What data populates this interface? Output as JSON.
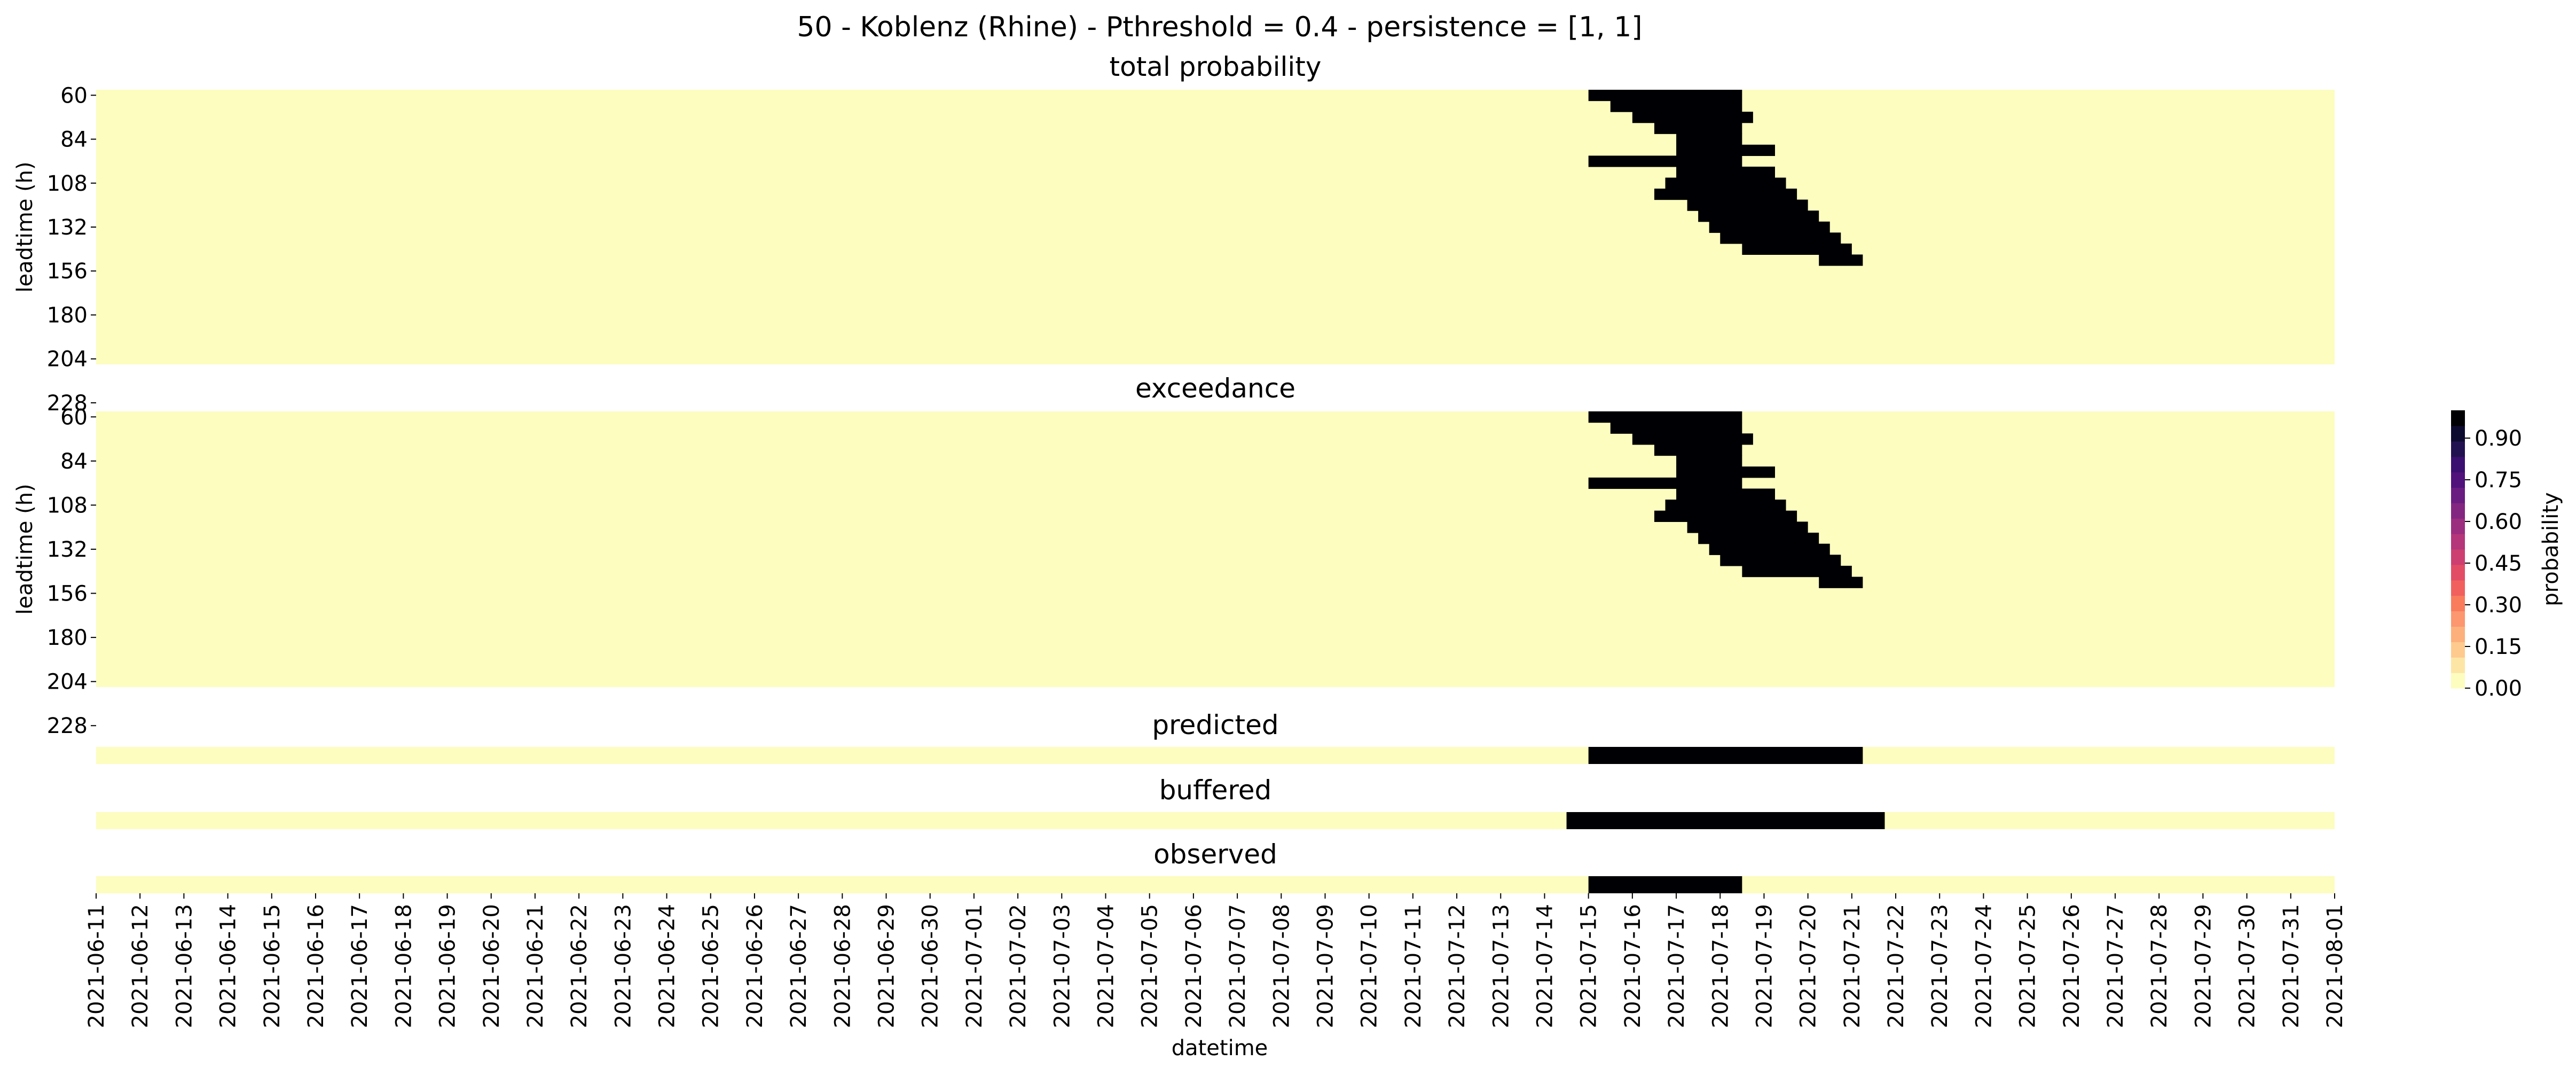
{
  "chart_data": {
    "type": "heatmap",
    "title": "50 - Koblenz (Rhine) - Pthreshold = 0.4 - persistence = [1, 1]",
    "xlabel": "datetime",
    "x_tick_labels": [
      "2021-06-11",
      "2021-06-12",
      "2021-06-13",
      "2021-06-14",
      "2021-06-15",
      "2021-06-16",
      "2021-06-17",
      "2021-06-18",
      "2021-06-19",
      "2021-06-20",
      "2021-06-21",
      "2021-06-22",
      "2021-06-23",
      "2021-06-24",
      "2021-06-25",
      "2021-06-26",
      "2021-06-27",
      "2021-06-28",
      "2021-06-29",
      "2021-06-30",
      "2021-07-01",
      "2021-07-02",
      "2021-07-03",
      "2021-07-04",
      "2021-07-05",
      "2021-07-06",
      "2021-07-07",
      "2021-07-08",
      "2021-07-09",
      "2021-07-10",
      "2021-07-11",
      "2021-07-12",
      "2021-07-13",
      "2021-07-14",
      "2021-07-15",
      "2021-07-16",
      "2021-07-17",
      "2021-07-18",
      "2021-07-19",
      "2021-07-20",
      "2021-07-21",
      "2021-07-22",
      "2021-07-23",
      "2021-07-24",
      "2021-07-25",
      "2021-07-26",
      "2021-07-27",
      "2021-07-28",
      "2021-07-29",
      "2021-07-30",
      "2021-07-31",
      "2021-08-01"
    ],
    "colorbar": {
      "label": "probability",
      "ticks": [
        "0.00",
        "0.15",
        "0.30",
        "0.45",
        "0.60",
        "0.75",
        "0.90"
      ],
      "colormap": "magma_r"
    },
    "colors": {
      "low": "#fcfdbf",
      "high": "#000004",
      "steps": [
        "#fcfdbf",
        "#fde5a6",
        "#feca8d",
        "#fdb07b",
        "#fc9770",
        "#f97c5d",
        "#f1605d",
        "#e24d65",
        "#cd3f71",
        "#b5367a",
        "#9c2e7f",
        "#832681",
        "#6a1c81",
        "#51127c",
        "#3b0f70",
        "#221150",
        "#0d0a2f",
        "#000004"
      ]
    },
    "heatmaps": [
      {
        "subtitle": "total probability",
        "ylabel": "leadtime (h)",
        "y_tick_labels": [
          "60",
          "84",
          "108",
          "132",
          "156",
          "180",
          "204",
          "228"
        ],
        "exceedance_date_ranges": [
          [
            "2021-07-15 00:00",
            "2021-07-18 12:00"
          ],
          [
            "2021-07-15 12:00",
            "2021-07-18 12:00"
          ],
          [
            "2021-07-16 00:00",
            "2021-07-18 18:00"
          ],
          [
            "2021-07-16 12:00",
            "2021-07-18 12:00"
          ],
          [
            "2021-07-17 00:00",
            "2021-07-18 12:00"
          ],
          [
            "2021-07-17 00:00",
            "2021-07-19 06:00"
          ],
          [
            "2021-07-15 00:00",
            "2021-07-18 12:00"
          ],
          [
            "2021-07-17 00:00",
            "2021-07-19 06:00"
          ],
          [
            "2021-07-16 18:00",
            "2021-07-19 12:00"
          ],
          [
            "2021-07-16 12:00",
            "2021-07-19 18:00"
          ],
          [
            "2021-07-17 06:00",
            "2021-07-20 00:00"
          ],
          [
            "2021-07-17 12:00",
            "2021-07-20 06:00"
          ],
          [
            "2021-07-17 18:00",
            "2021-07-20 12:00"
          ],
          [
            "2021-07-18 00:00",
            "2021-07-20 18:00"
          ],
          [
            "2021-07-18 12:00",
            "2021-07-21 00:00"
          ],
          [
            "2021-07-20 06:00",
            "2021-07-21 06:00"
          ]
        ]
      },
      {
        "subtitle": "exceedance",
        "ylabel": "leadtime (h)",
        "y_tick_labels": [
          "60",
          "84",
          "108",
          "132",
          "156",
          "180",
          "204",
          "228"
        ],
        "exceedance_date_ranges": [
          [
            "2021-07-15 00:00",
            "2021-07-18 12:00"
          ],
          [
            "2021-07-15 12:00",
            "2021-07-18 12:00"
          ],
          [
            "2021-07-16 00:00",
            "2021-07-18 18:00"
          ],
          [
            "2021-07-16 12:00",
            "2021-07-18 12:00"
          ],
          [
            "2021-07-17 00:00",
            "2021-07-18 12:00"
          ],
          [
            "2021-07-17 00:00",
            "2021-07-19 06:00"
          ],
          [
            "2021-07-15 00:00",
            "2021-07-18 12:00"
          ],
          [
            "2021-07-17 00:00",
            "2021-07-19 06:00"
          ],
          [
            "2021-07-16 18:00",
            "2021-07-19 12:00"
          ],
          [
            "2021-07-16 12:00",
            "2021-07-19 18:00"
          ],
          [
            "2021-07-17 06:00",
            "2021-07-20 00:00"
          ],
          [
            "2021-07-17 12:00",
            "2021-07-20 06:00"
          ],
          [
            "2021-07-17 18:00",
            "2021-07-20 12:00"
          ],
          [
            "2021-07-18 00:00",
            "2021-07-20 18:00"
          ],
          [
            "2021-07-18 12:00",
            "2021-07-21 00:00"
          ],
          [
            "2021-07-20 06:00",
            "2021-07-21 06:00"
          ]
        ]
      }
    ],
    "strips": [
      {
        "subtitle": "predicted",
        "event_start": "2021-07-15 00:00",
        "event_end": "2021-07-21 06:00"
      },
      {
        "subtitle": "buffered",
        "event_start": "2021-07-14 12:00",
        "event_end": "2021-07-21 18:00"
      },
      {
        "subtitle": "observed",
        "event_start": "2021-07-15 00:00",
        "event_end": "2021-07-18 12:00"
      }
    ]
  }
}
